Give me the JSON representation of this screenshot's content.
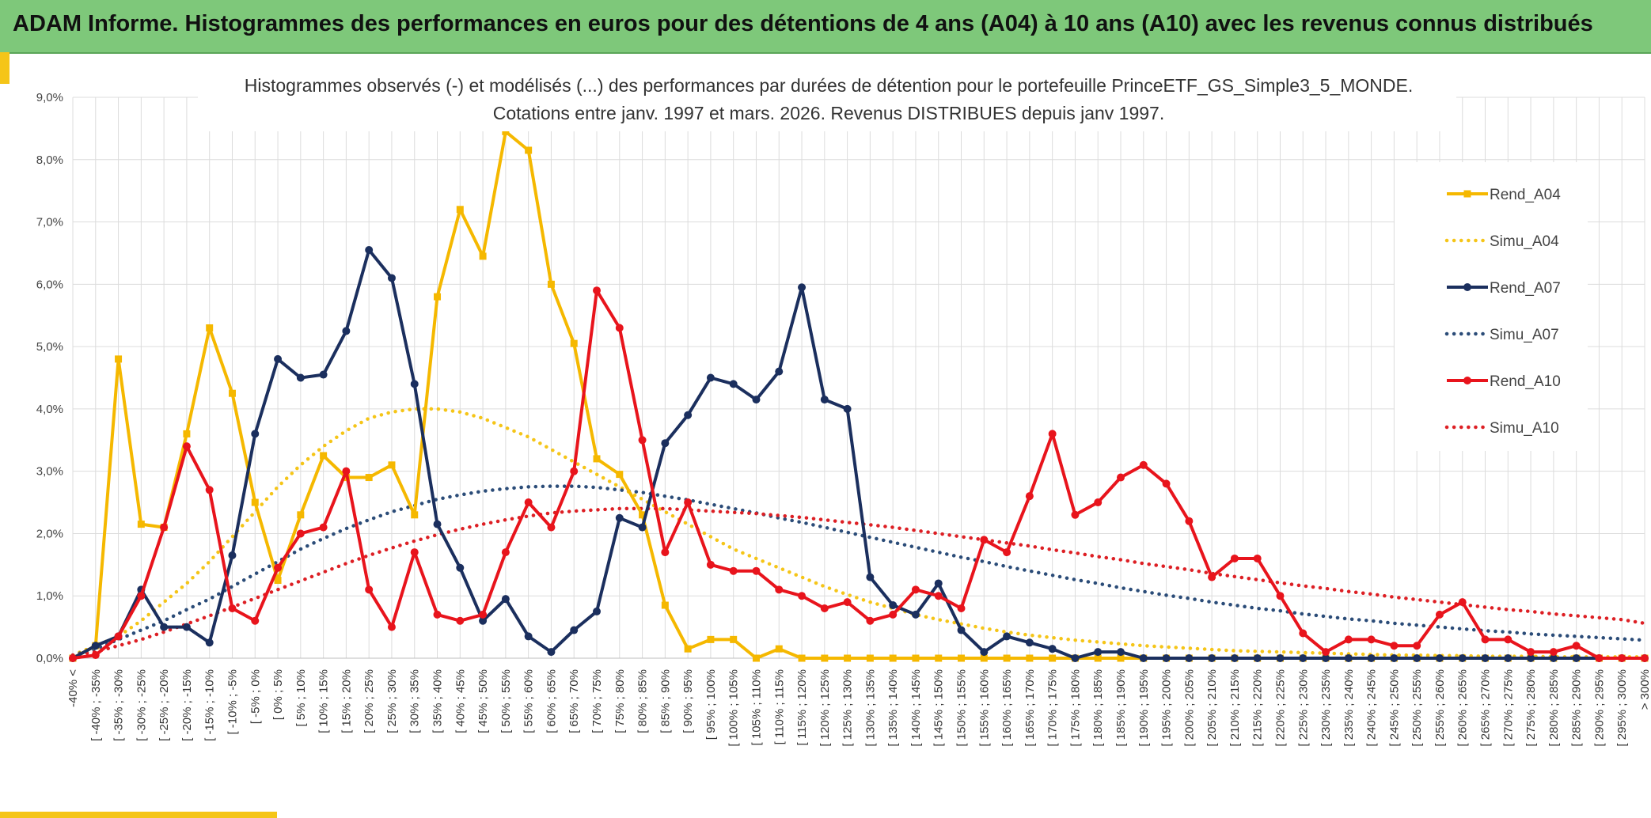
{
  "header": {
    "title": "ADAM Informe. Histogrammes des performances en euros pour des détentions de 4 ans (A04) à 10 ans (A10) avec les revenus connus distribués"
  },
  "colors": {
    "banner": "#7ec87a",
    "accent": "#f5c518",
    "a04": "#f5b800",
    "a07": "#1b2f5e",
    "a10": "#e8141c",
    "simu04": "#f5c518",
    "simu07": "#2b4c78",
    "simu10": "#dd1f24"
  },
  "chart_data": {
    "type": "line",
    "title_line1": "Histogrammes observés (-) et modélisés (...) des performances par durées de détention pour le portefeuille PrinceETF_GS_Simple3_5_MONDE.",
    "title_line2": "Cotations entre janv. 1997 et mars. 2026. Revenus DISTRIBUES depuis janv 1997.",
    "ylim": [
      0,
      9
    ],
    "yticks": [
      "0,0%",
      "1,0%",
      "2,0%",
      "3,0%",
      "4,0%",
      "5,0%",
      "6,0%",
      "7,0%",
      "8,0%",
      "9,0%"
    ],
    "categories": [
      "-40% <",
      "[ -40% ; -35%",
      "[ -35% ; -30%",
      "[ -30% ; -25%",
      "[ -25% ; -20%",
      "[ -20% ; -15%",
      "[ -15% ; -10%",
      "[ -10% ; -5%",
      "[ -5% ; 0%",
      "[ 0% ; 5%",
      "[ 5% ; 10%",
      "[ 10% ; 15%",
      "[ 15% ; 20%",
      "[ 20% ; 25%",
      "[ 25% ; 30%",
      "[ 30% ; 35%",
      "[ 35% ; 40%",
      "[ 40% ; 45%",
      "[ 45% ; 50%",
      "[ 50% ; 55%",
      "[ 55% ; 60%",
      "[ 60% ; 65%",
      "[ 65% ; 70%",
      "[ 70% ; 75%",
      "[ 75% ; 80%",
      "[ 80% ; 85%",
      "[ 85% ; 90%",
      "[ 90% ; 95%",
      "[ 95% ; 100%",
      "[ 100% ; 105%",
      "[ 105% ; 110%",
      "[ 110% ; 115%",
      "[ 115% ; 120%",
      "[ 120% ; 125%",
      "[ 125% ; 130%",
      "[ 130% ; 135%",
      "[ 135% ; 140%",
      "[ 140% ; 145%",
      "[ 145% ; 150%",
      "[ 150% ; 155%",
      "[ 155% ; 160%",
      "[ 160% ; 165%",
      "[ 165% ; 170%",
      "[ 170% ; 175%",
      "[ 175% ; 180%",
      "[ 180% ; 185%",
      "[ 185% ; 190%",
      "[ 190% ; 195%",
      "[ 195% ; 200%",
      "[ 200% ; 205%",
      "[ 205% ; 210%",
      "[ 210% ; 215%",
      "[ 215% ; 220%",
      "[ 220% ; 225%",
      "[ 225% ; 230%",
      "[ 230% ; 235%",
      "[ 235% ; 240%",
      "[ 240% ; 245%",
      "[ 245% ; 250%",
      "[ 250% ; 255%",
      "[ 255% ; 260%",
      "[ 260% ; 265%",
      "[ 265% ; 270%",
      "[ 270% ; 275%",
      "[ 275% ; 280%",
      "[ 280% ; 285%",
      "[ 285% ; 290%",
      "[ 290% ; 295%",
      "[ 295% ; 300%",
      "> 300%"
    ],
    "legend_position": "right",
    "series": [
      {
        "name": "Rend_A04",
        "style": "solid",
        "marker": "square",
        "color": "#f5b800",
        "values": [
          0,
          0.2,
          4.8,
          2.15,
          2.1,
          3.6,
          5.3,
          4.25,
          2.5,
          1.25,
          2.3,
          3.25,
          2.9,
          2.9,
          3.1,
          2.3,
          5.8,
          7.2,
          6.45,
          8.45,
          8.15,
          6.0,
          5.05,
          3.2,
          2.95,
          2.3,
          0.85,
          0.15,
          0.3,
          0.3,
          0.0,
          0.15,
          0.0,
          0,
          0,
          0,
          0,
          0,
          0,
          0,
          0,
          0,
          0,
          0,
          0,
          0,
          0,
          0,
          0,
          0,
          0,
          0,
          0,
          0,
          0,
          0,
          0,
          0,
          0,
          0,
          0,
          0,
          0,
          0,
          0,
          0,
          0,
          0,
          0,
          0
        ]
      },
      {
        "name": "Simu_A04",
        "style": "dotted",
        "color": "#f5c518",
        "values": [
          0.05,
          0.2,
          0.35,
          0.6,
          0.9,
          1.2,
          1.55,
          1.95,
          2.35,
          2.75,
          3.1,
          3.4,
          3.65,
          3.85,
          3.95,
          4.0,
          4.0,
          3.95,
          3.85,
          3.7,
          3.55,
          3.35,
          3.15,
          2.95,
          2.75,
          2.55,
          2.35,
          2.15,
          1.95,
          1.75,
          1.6,
          1.45,
          1.3,
          1.15,
          1.02,
          0.9,
          0.8,
          0.7,
          0.62,
          0.55,
          0.48,
          0.42,
          0.37,
          0.33,
          0.29,
          0.26,
          0.23,
          0.2,
          0.18,
          0.16,
          0.14,
          0.12,
          0.11,
          0.1,
          0.09,
          0.08,
          0.07,
          0.06,
          0.05,
          0.05,
          0.04,
          0.04,
          0.03,
          0.03,
          0.03,
          0.02,
          0.02,
          0.02,
          0.02,
          0.02
        ]
      },
      {
        "name": "Rend_A07",
        "style": "solid",
        "marker": "circle",
        "color": "#1b2f5e",
        "values": [
          0,
          0.2,
          0.35,
          1.1,
          0.5,
          0.5,
          0.25,
          1.65,
          3.6,
          4.8,
          4.5,
          4.55,
          5.25,
          6.55,
          6.1,
          4.4,
          2.15,
          1.45,
          0.6,
          0.95,
          0.35,
          0.1,
          0.45,
          0.75,
          2.25,
          2.1,
          3.45,
          3.9,
          4.5,
          4.4,
          4.15,
          4.6,
          5.95,
          4.15,
          4.0,
          1.3,
          0.85,
          0.7,
          1.2,
          0.45,
          0.1,
          0.35,
          0.25,
          0.15,
          0.0,
          0.1,
          0.1,
          0,
          0,
          0,
          0,
          0,
          0,
          0,
          0,
          0,
          0,
          0,
          0,
          0,
          0,
          0,
          0,
          0,
          0,
          0,
          0,
          0,
          0,
          0
        ]
      },
      {
        "name": "Simu_A07",
        "style": "dotted",
        "color": "#2b4c78",
        "values": [
          0.05,
          0.15,
          0.3,
          0.45,
          0.6,
          0.78,
          0.95,
          1.15,
          1.35,
          1.55,
          1.75,
          1.92,
          2.08,
          2.22,
          2.35,
          2.45,
          2.55,
          2.62,
          2.68,
          2.72,
          2.75,
          2.76,
          2.76,
          2.74,
          2.7,
          2.66,
          2.6,
          2.54,
          2.47,
          2.4,
          2.33,
          2.25,
          2.18,
          2.1,
          2.02,
          1.94,
          1.86,
          1.78,
          1.7,
          1.62,
          1.55,
          1.47,
          1.4,
          1.33,
          1.26,
          1.2,
          1.13,
          1.07,
          1.01,
          0.96,
          0.9,
          0.85,
          0.8,
          0.76,
          0.71,
          0.67,
          0.63,
          0.6,
          0.56,
          0.53,
          0.5,
          0.47,
          0.44,
          0.42,
          0.39,
          0.37,
          0.35,
          0.33,
          0.31,
          0.29
        ]
      },
      {
        "name": "Rend_A10",
        "style": "solid",
        "marker": "circle",
        "color": "#e8141c",
        "values": [
          0,
          0.05,
          0.35,
          1.0,
          2.1,
          3.4,
          2.7,
          0.8,
          0.6,
          1.45,
          2.0,
          2.1,
          3.0,
          1.1,
          0.5,
          1.7,
          0.7,
          0.6,
          0.7,
          1.7,
          2.5,
          2.1,
          3.0,
          5.9,
          5.3,
          3.5,
          1.7,
          2.5,
          1.5,
          1.4,
          1.4,
          1.1,
          1.0,
          0.8,
          0.9,
          0.6,
          0.7,
          1.1,
          1.0,
          0.8,
          1.9,
          1.7,
          2.6,
          3.6,
          2.3,
          2.5,
          2.9,
          3.1,
          2.8,
          2.2,
          1.3,
          1.6,
          1.6,
          1.0,
          0.4,
          0.1,
          0.3,
          0.3,
          0.2,
          0.2,
          0.7,
          0.9,
          0.3,
          0.3,
          0.1,
          0.1,
          0.2,
          0.0,
          0.0,
          0.0
        ]
      },
      {
        "name": "Simu_A10",
        "style": "dotted",
        "color": "#dd1f24",
        "values": [
          0.05,
          0.1,
          0.2,
          0.3,
          0.42,
          0.55,
          0.68,
          0.82,
          0.96,
          1.1,
          1.24,
          1.38,
          1.52,
          1.65,
          1.77,
          1.88,
          1.98,
          2.07,
          2.15,
          2.22,
          2.28,
          2.33,
          2.36,
          2.38,
          2.4,
          2.4,
          2.4,
          2.38,
          2.36,
          2.34,
          2.32,
          2.29,
          2.26,
          2.22,
          2.18,
          2.14,
          2.1,
          2.05,
          2.0,
          1.95,
          1.9,
          1.85,
          1.8,
          1.74,
          1.69,
          1.63,
          1.58,
          1.52,
          1.47,
          1.42,
          1.36,
          1.31,
          1.26,
          1.21,
          1.16,
          1.12,
          1.07,
          1.03,
          0.98,
          0.94,
          0.9,
          0.86,
          0.82,
          0.78,
          0.75,
          0.71,
          0.68,
          0.65,
          0.62,
          0.56
        ]
      }
    ]
  }
}
